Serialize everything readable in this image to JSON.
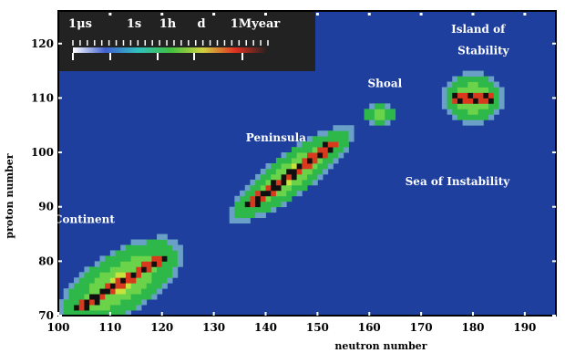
{
  "chart_data": {
    "type": "heatmap",
    "title": "",
    "xlabel": "neutron number",
    "ylabel": "proton number",
    "xlim": [
      100,
      196
    ],
    "ylim": [
      70,
      126
    ],
    "x_ticks": [
      100,
      110,
      120,
      130,
      140,
      150,
      160,
      170,
      180,
      190
    ],
    "y_ticks": [
      70,
      80,
      90,
      100,
      110,
      120
    ],
    "colors": {
      "background": "#1e3f9e",
      "halo": "#6aa0c8",
      "low": "#2fb84a",
      "mid": "#6bd34a",
      "high": "#c8e23c",
      "peak": "#d93a1e",
      "stable": "#101010"
    },
    "colorbar": {
      "labels": [
        "1μs",
        "1s",
        "1h",
        "d",
        "1Myear"
      ],
      "colors": [
        "#ffffff",
        "#4060d0",
        "#30c0c0",
        "#40c040",
        "#d0d040",
        "#e03020",
        "#202020"
      ]
    },
    "regions": [
      {
        "name": "Continent",
        "x": 105,
        "y": 87
      },
      {
        "name": "Peninsula",
        "x": 142,
        "y": 102
      },
      {
        "name": "Shoal",
        "x": 163,
        "y": 112
      },
      {
        "name": "Island of",
        "x": 181,
        "y": 122
      },
      {
        "name": "Stability",
        "x": 182,
        "y": 118
      },
      {
        "name": "Sea of Instability",
        "x": 177,
        "y": 94
      }
    ],
    "islands": [
      {
        "name": "Continent",
        "center": [
          112,
          76
        ],
        "spread": [
          14,
          6
        ],
        "rotation_deg": 30
      },
      {
        "name": "Peninsula",
        "center": [
          145,
          96
        ],
        "spread": [
          15,
          4
        ],
        "rotation_deg": 35
      },
      {
        "name": "Shoal",
        "center": [
          162,
          107
        ],
        "spread": [
          3,
          2
        ],
        "rotation_deg": 0
      },
      {
        "name": "Island of Stability",
        "center": [
          180,
          110
        ],
        "spread": [
          6,
          5
        ],
        "rotation_deg": 0
      }
    ]
  }
}
